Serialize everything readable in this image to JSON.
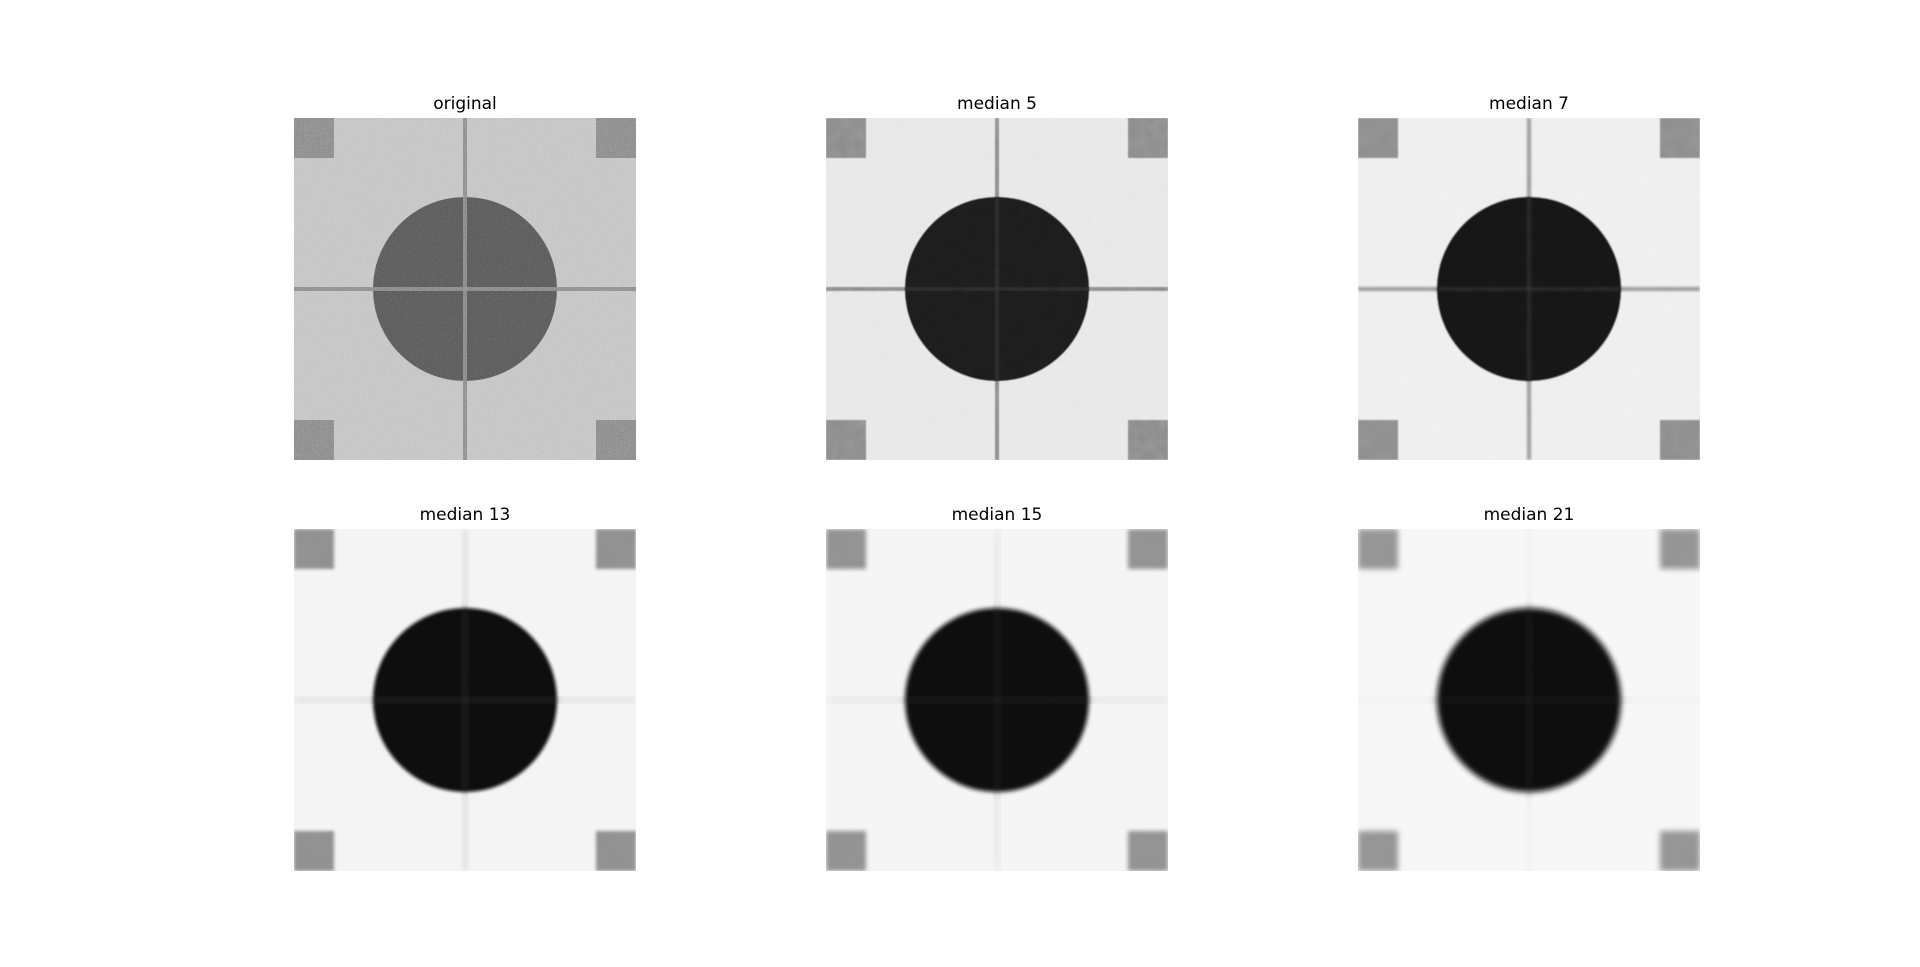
{
  "figure": {
    "panels": [
      {
        "title": "original",
        "background": "#c2c2c2",
        "disk": "#585858",
        "corner": "#878787",
        "line": "#8a8a8a",
        "line_blur": 0,
        "disk_blur": 0,
        "noise": 0.45,
        "grain": 0.75
      },
      {
        "title": "median 5",
        "background": "#e8e8e8",
        "disk": "#1a1a1a",
        "corner": "#8c8c8c",
        "line": "#8e8e8e",
        "line_blur": 0.6,
        "disk_blur": 0.5,
        "noise": 0.22,
        "grain": 0.09
      },
      {
        "title": "median 7",
        "background": "#efefef",
        "disk": "#171717",
        "corner": "#8e8e8e",
        "line": "#9a9a9a",
        "line_blur": 1.2,
        "disk_blur": 0.8,
        "noise": 0.14,
        "grain": 0.07
      },
      {
        "title": "median 13",
        "background": "#f4f4f4",
        "disk": "#0e0e0e",
        "corner": "#909090",
        "line": "#dadada",
        "line_blur": 3.5,
        "disk_blur": 1.6,
        "noise": 0.07,
        "grain": 0.05
      },
      {
        "title": "median 15",
        "background": "#f5f5f5",
        "disk": "#0d0d0d",
        "corner": "#929292",
        "line": "#dddddd",
        "line_blur": 4.5,
        "disk_blur": 2.0,
        "noise": 0.06,
        "grain": 0.045
      },
      {
        "title": "median 21",
        "background": "#f7f7f7",
        "disk": "#0c0c0c",
        "corner": "#949494",
        "line": "#e8e8e8",
        "line_blur": 6.5,
        "disk_blur": 2.8,
        "noise": 0.05,
        "grain": 0.04
      }
    ]
  }
}
